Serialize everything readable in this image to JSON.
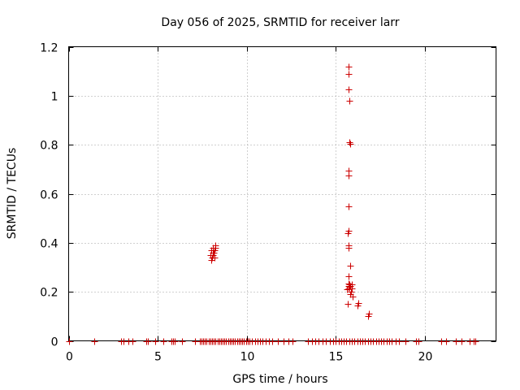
{
  "chart_data": {
    "type": "scatter",
    "title": "Day 056 of 2025, SRMTID for receiver larr",
    "xlabel": "GPS time / hours",
    "ylabel": "SRMTID / TECUs",
    "xlim": [
      0,
      24
    ],
    "ylim": [
      0,
      1.2
    ],
    "xticks": [
      0,
      5,
      10,
      15,
      20
    ],
    "xtick_labels": [
      "0",
      "5",
      "10",
      "15",
      "20"
    ],
    "yticks": [
      0,
      0.2,
      0.4,
      0.6,
      0.8,
      1.0,
      1.2
    ],
    "ytick_labels": [
      "0",
      "0.2",
      "0.4",
      "0.6",
      "0.8",
      "1",
      "1.2"
    ],
    "grid": true,
    "marker": "+",
    "marker_color": "#cc0000",
    "series": [
      {
        "name": "SRMTID",
        "x": [
          0.0,
          1.45,
          2.95,
          3.1,
          3.35,
          3.6,
          4.35,
          4.45,
          4.85,
          5.3,
          5.75,
          5.85,
          5.95,
          6.35,
          7.1,
          7.35,
          7.45,
          7.55,
          7.65,
          7.75,
          7.85,
          7.95,
          8.05,
          8.15,
          8.25,
          8.35,
          8.45,
          8.55,
          8.65,
          8.75,
          8.85,
          8.95,
          9.05,
          9.15,
          9.25,
          9.35,
          9.45,
          9.55,
          9.65,
          9.75,
          9.85,
          9.95,
          10.05,
          10.15,
          10.3,
          10.45,
          10.6,
          10.75,
          10.9,
          11.05,
          11.25,
          11.45,
          11.75,
          12.05,
          12.35,
          12.55,
          13.45,
          13.65,
          13.85,
          14.05,
          14.25,
          14.45,
          14.65,
          14.85,
          15.0,
          15.15,
          15.3,
          15.45,
          15.6,
          15.75,
          15.9,
          16.05,
          16.2,
          16.35,
          16.5,
          16.65,
          16.8,
          16.95,
          17.1,
          17.25,
          17.4,
          17.55,
          17.7,
          17.85,
          18.0,
          18.15,
          18.35,
          18.55,
          18.9,
          19.5,
          19.65,
          20.9,
          21.2,
          21.75,
          22.05,
          22.5,
          22.75,
          22.85,
          7.95,
          8.0,
          8.02,
          8.05,
          8.08,
          8.1,
          8.12,
          8.15,
          8.18,
          8.2,
          8.23,
          8.25,
          15.7,
          15.72,
          15.74,
          15.76,
          15.78,
          15.8,
          15.72,
          15.74,
          15.7,
          15.72,
          15.68,
          15.74,
          15.7,
          15.8,
          15.72,
          15.78,
          15.76,
          15.65,
          15.7,
          15.72,
          15.74,
          15.8,
          15.85,
          15.88,
          15.82,
          15.9,
          15.95,
          15.68,
          16.2,
          16.25,
          16.8,
          16.85
        ],
        "y": [
          0,
          0,
          0,
          0,
          0,
          0,
          0,
          0,
          0,
          0,
          0,
          0,
          0,
          0,
          0,
          0,
          0,
          0,
          0,
          0,
          0,
          0,
          0,
          0,
          0,
          0,
          0,
          0,
          0,
          0,
          0,
          0,
          0,
          0,
          0,
          0,
          0,
          0,
          0,
          0,
          0,
          0,
          0,
          0,
          0,
          0,
          0,
          0,
          0,
          0,
          0,
          0,
          0,
          0,
          0,
          0,
          0,
          0,
          0,
          0,
          0,
          0,
          0,
          0,
          0,
          0,
          0,
          0,
          0,
          0,
          0,
          0,
          0,
          0,
          0,
          0,
          0,
          0,
          0,
          0,
          0,
          0,
          0,
          0,
          0,
          0,
          0,
          0,
          0,
          0,
          0,
          0,
          0,
          0,
          0,
          0,
          0,
          0,
          0.35,
          0.33,
          0.37,
          0.34,
          0.36,
          0.38,
          0.35,
          0.36,
          0.34,
          0.37,
          0.39,
          0.38,
          1.12,
          1.09,
          1.025,
          0.98,
          0.81,
          0.805,
          0.695,
          0.675,
          0.55,
          0.45,
          0.44,
          0.38,
          0.39,
          0.305,
          0.265,
          0.23,
          0.22,
          0.21,
          0.235,
          0.225,
          0.215,
          0.225,
          0.2,
          0.215,
          0.19,
          0.23,
          0.18,
          0.15,
          0.145,
          0.155,
          0.1,
          0.11
        ]
      }
    ]
  }
}
